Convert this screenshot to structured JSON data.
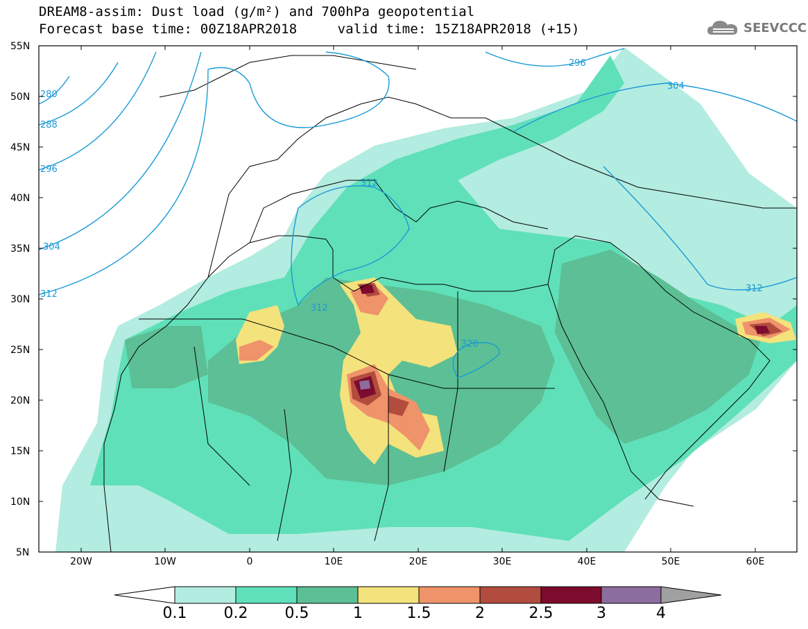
{
  "header": {
    "title_line1": "DREAM8-assim: Dust load (g/m²) and 700hPa geopotential",
    "title_line2": "Forecast base time: 00Z18APR2018     valid time: 15Z18APR2018 (+15)",
    "logo_text": "SEEVCCC"
  },
  "map": {
    "lat_labels": [
      "55N",
      "50N",
      "45N",
      "40N",
      "35N",
      "30N",
      "25N",
      "20N",
      "15N",
      "10N",
      "5N"
    ],
    "lon_labels": [
      "20W",
      "10W",
      "0",
      "10E",
      "20E",
      "30E",
      "40E",
      "50E",
      "60E"
    ],
    "geopotential_labels": [
      "280",
      "288",
      "296",
      "304",
      "312",
      "312",
      "312",
      "320",
      "296",
      "304",
      "312"
    ],
    "contour_color": "#1a9ad6"
  },
  "colorbar": {
    "tick_labels": [
      "0.1",
      "0.2",
      "0.5",
      "1",
      "1.5",
      "2",
      "2.5",
      "3",
      "4"
    ],
    "colors": [
      "#ffffff",
      "#b3ece0",
      "#5fe0b8",
      "#5dbf95",
      "#f4e27c",
      "#ef936a",
      "#b24c3e",
      "#7d0b2e",
      "#8c6e9e",
      "#a0a0a0"
    ]
  }
}
